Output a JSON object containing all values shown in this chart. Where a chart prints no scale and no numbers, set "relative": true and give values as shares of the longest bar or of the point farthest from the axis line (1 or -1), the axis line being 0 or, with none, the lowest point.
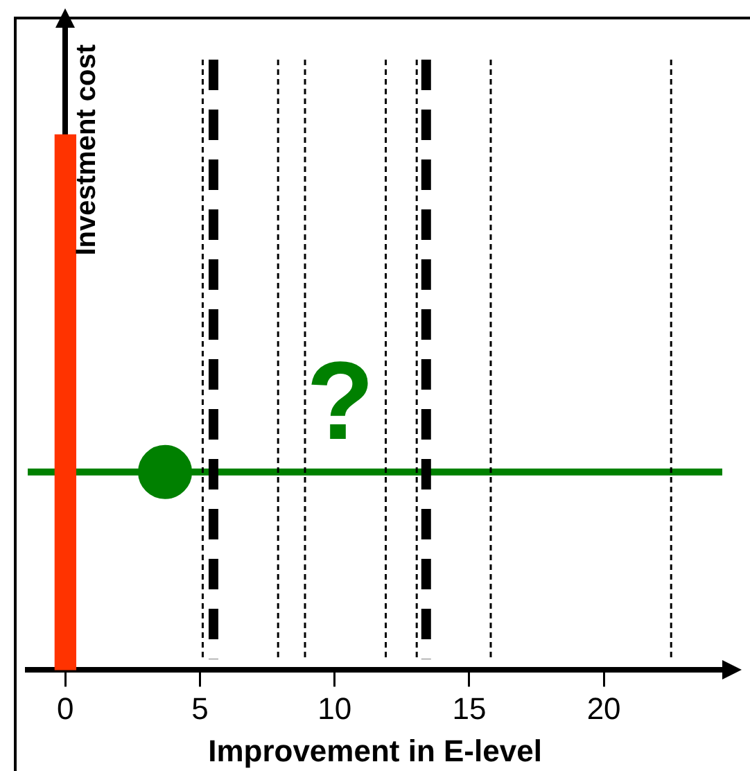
{
  "chart_data": {
    "type": "bar",
    "xlabel": "Improvement in E-level",
    "ylabel": "Investment cost",
    "relative": true,
    "xlim": [
      -1.4,
      24.4
    ],
    "xticks": [
      0,
      5,
      10,
      15,
      20
    ],
    "grid": false,
    "legend": false,
    "series": [
      {
        "color": "#ff3300",
        "x": [
          0
        ],
        "values": [
          1
        ]
      },
      {
        "type": "scatter",
        "color": "#008000",
        "x": [
          3.7
        ],
        "values": [
          0.37
        ]
      }
    ],
    "ref_lines": [
      {
        "axis": "y",
        "value": 0.37,
        "color": "#008000",
        "line_style": "solid"
      },
      {
        "axis": "x",
        "value": 5.5,
        "color": "#000000",
        "line_style": "dashed"
      },
      {
        "axis": "x",
        "value": 13.4,
        "color": "#000000",
        "line_style": "dashed"
      },
      {
        "axis": "x",
        "value": 5.1,
        "color": "#000000",
        "line_style": "dotted"
      },
      {
        "axis": "x",
        "value": 7.9,
        "color": "#000000",
        "line_style": "dotted"
      },
      {
        "axis": "x",
        "value": 8.9,
        "color": "#000000",
        "line_style": "dotted"
      },
      {
        "axis": "x",
        "value": 11.9,
        "color": "#000000",
        "line_style": "dotted"
      },
      {
        "axis": "x",
        "value": 13.05,
        "color": "#000000",
        "line_style": "dotted"
      },
      {
        "axis": "x",
        "value": 15.8,
        "color": "#000000",
        "line_style": "dotted"
      },
      {
        "axis": "x",
        "value": 22.5,
        "color": "#000000",
        "line_style": "dotted"
      }
    ],
    "annotations": [
      "?"
    ]
  }
}
